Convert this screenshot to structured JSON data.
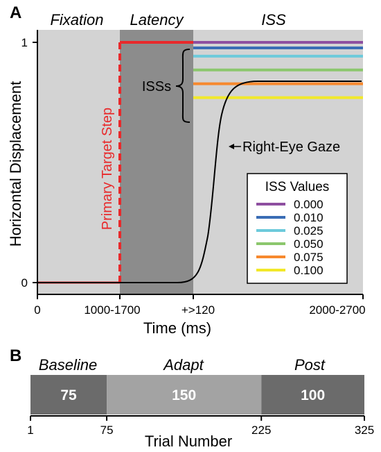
{
  "colors": {
    "bg_light": "#d3d3d3",
    "bg_dark": "#8c8c8c",
    "target_red": "#e8292b",
    "gaze": "#000000",
    "iss_purple": "#8e4fa0",
    "iss_blue": "#3a6db5",
    "iss_cyan": "#6dcadb",
    "iss_green": "#8cc76d",
    "iss_orange": "#f7892e",
    "iss_yellow": "#f2e829",
    "block_dark": "#6b6b6b",
    "block_light": "#a3a3a3"
  },
  "panel_a": {
    "letter": "A",
    "phases": [
      "Fixation",
      "Latency",
      "ISS"
    ],
    "ylabel": "Horizontal Displacement",
    "xlabel": "Time (ms)",
    "y_ticks": [
      "0",
      "1"
    ],
    "x_ticks": [
      "0",
      "1000-1700",
      "+>120",
      "2000-2700"
    ],
    "annotations": {
      "primary_target": "Primary Target Step",
      "isss": "ISSs",
      "gaze": "Right-Eye Gaze"
    },
    "legend": {
      "title": "ISS Values",
      "entries": [
        {
          "label": "0.000",
          "color": "#8e4fa0"
        },
        {
          "label": "0.010",
          "color": "#3a6db5"
        },
        {
          "label": "0.025",
          "color": "#6dcadb"
        },
        {
          "label": "0.050",
          "color": "#8cc76d"
        },
        {
          "label": "0.075",
          "color": "#f7892e"
        },
        {
          "label": "0.100",
          "color": "#f2e829"
        }
      ]
    }
  },
  "panel_b": {
    "letter": "B",
    "xlabel": "Trial Number",
    "x_ticks": [
      "1",
      "75",
      "225",
      "325"
    ],
    "blocks": [
      {
        "name": "Baseline",
        "trials": "75"
      },
      {
        "name": "Adapt",
        "trials": "150"
      },
      {
        "name": "Post",
        "trials": "100"
      }
    ]
  },
  "chart_data": {
    "type": "line",
    "ylim": [
      0,
      1
    ],
    "y_tick_values": [
      0,
      1
    ],
    "iss_values": [
      0.0,
      0.01,
      0.025,
      0.05,
      0.075,
      0.1
    ],
    "primary_target_step": {
      "from": 0,
      "to": 1
    },
    "gaze_final_value": 0.8,
    "trial_blocks": [
      {
        "name": "Baseline",
        "start": 1,
        "end": 75,
        "trials": 75
      },
      {
        "name": "Adapt",
        "start": 75,
        "end": 225,
        "trials": 150
      },
      {
        "name": "Post",
        "start": 225,
        "end": 325,
        "trials": 100
      }
    ]
  }
}
